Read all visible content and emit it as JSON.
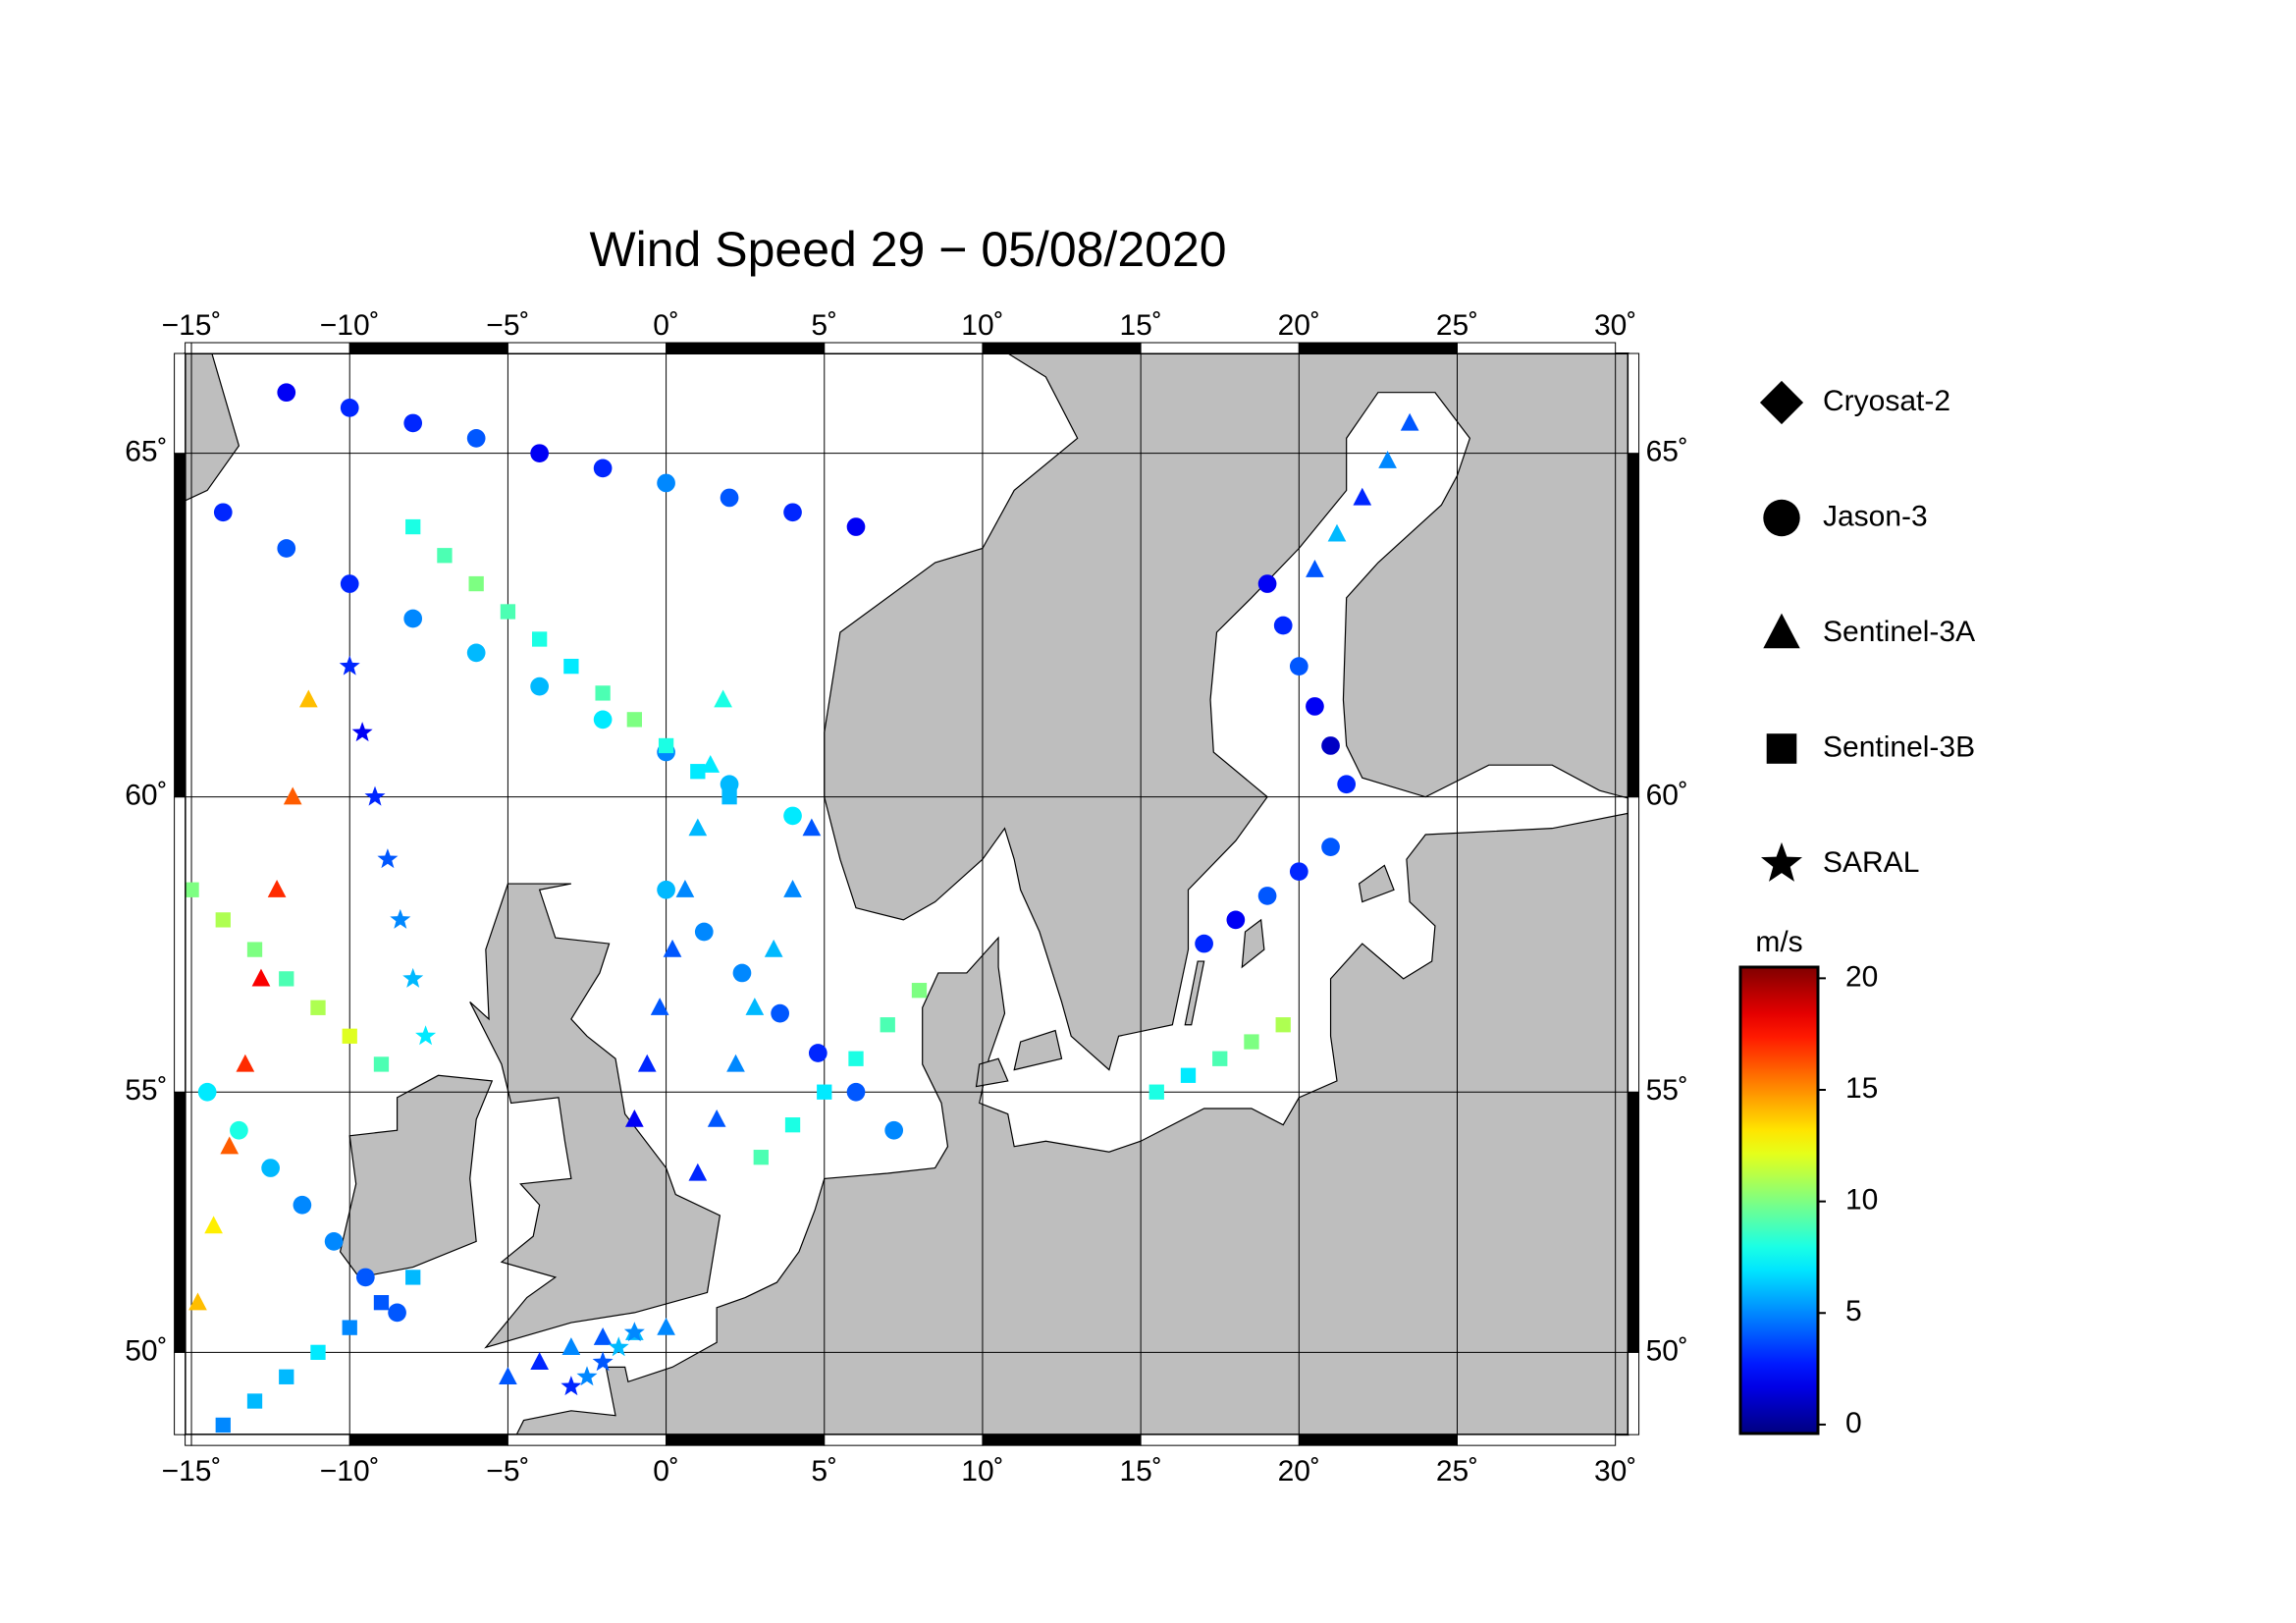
{
  "chart_data": {
    "type": "map",
    "title": "Wind Speed 29 − 05/08/2020",
    "xlim": [
      -15.2,
      30.4
    ],
    "ylim": [
      48.3,
      66.3
    ],
    "xticks": [
      {
        "value": -15,
        "label": "−15˚"
      },
      {
        "value": -10,
        "label": "−10˚"
      },
      {
        "value": -5,
        "label": "−5˚"
      },
      {
        "value": 0,
        "label": "0˚"
      },
      {
        "value": 5,
        "label": "5˚"
      },
      {
        "value": 10,
        "label": "10˚"
      },
      {
        "value": 15,
        "label": "15˚"
      },
      {
        "value": 20,
        "label": "20˚"
      },
      {
        "value": 25,
        "label": "25˚"
      },
      {
        "value": 30,
        "label": "30˚"
      }
    ],
    "yticks": [
      {
        "value": 50,
        "label": "50˚"
      },
      {
        "value": 55,
        "label": "55˚"
      },
      {
        "value": 60,
        "label": "60˚"
      },
      {
        "value": 65,
        "label": "65˚"
      }
    ],
    "grid": true,
    "colorbar": {
      "label": "m/s",
      "colormap": "jet",
      "clim": [
        -0.4,
        20.5
      ],
      "ticks": [
        0,
        5,
        10,
        15,
        20
      ]
    },
    "satellites": [
      {
        "name": "Cryosat-2",
        "marker": "diamond",
        "tracks": []
      },
      {
        "name": "Jason-3",
        "marker": "circle",
        "tracks": [
          {
            "lon": [
              -14,
              -12,
              -10,
              -8,
              -6,
              -4,
              -2,
              0,
              2,
              4
            ],
            "lat": [
              64.2,
              63.7,
              63.2,
              62.7,
              62.2,
              61.7,
              61.2,
              60.7,
              60.2,
              59.7
            ],
            "values": [
              3,
              4,
              3,
              5,
              6,
              6,
              7,
              5,
              6,
              7
            ]
          },
          {
            "lon": [
              -12,
              -10,
              -8,
              -6,
              -4,
              -2,
              0,
              2,
              4,
              6
            ],
            "lat": [
              65.8,
              65.6,
              65.4,
              65.2,
              65.0,
              64.8,
              64.6,
              64.4,
              64.2,
              64.0
            ],
            "values": [
              2,
              3,
              3,
              4,
              2,
              3,
              5,
              4,
              3,
              2
            ]
          },
          {
            "lon": [
              0,
              1.2,
              2.4,
              3.6,
              4.8,
              6,
              7.2
            ],
            "lat": [
              58.5,
              57.8,
              57.1,
              56.4,
              55.7,
              55,
              54.3
            ],
            "values": [
              6,
              5,
              5,
              4,
              3,
              4,
              5
            ]
          },
          {
            "lon": [
              -14.5,
              -13.5,
              -12.5,
              -11.5,
              -10.5,
              -9.5,
              -8.5
            ],
            "lat": [
              55,
              54.3,
              53.6,
              52.9,
              52.2,
              51.5,
              50.8
            ],
            "values": [
              7,
              8,
              6,
              5,
              5,
              4,
              4
            ]
          },
          {
            "lon": [
              17,
              18,
              19,
              20,
              21
            ],
            "lat": [
              57.6,
              58,
              58.4,
              58.8,
              59.2
            ],
            "values": [
              3,
              2,
              4,
              3,
              4
            ]
          },
          {
            "lon": [
              19,
              19.5,
              20,
              20.5,
              21,
              21.5
            ],
            "lat": [
              63.2,
              62.6,
              62,
              61.4,
              60.8,
              60.2
            ],
            "values": [
              2,
              3,
              4,
              2,
              1,
              3
            ]
          }
        ]
      },
      {
        "name": "Sentinel-3A",
        "marker": "triangle",
        "tracks": [
          {
            "lon": [
              -14.8,
              -14.3,
              -13.8,
              -13.3,
              -12.8,
              -12.3,
              -11.8,
              -11.3
            ],
            "lat": [
              51,
              52.5,
              54,
              55.5,
              57,
              58.5,
              60,
              61.5
            ],
            "values": [
              14,
              13,
              16,
              17,
              18,
              17,
              16,
              14
            ]
          },
          {
            "lon": [
              1,
              1.6,
              2.2,
              2.8,
              3.4,
              4,
              4.6
            ],
            "lat": [
              53.5,
              54.5,
              55.5,
              56.5,
              57.5,
              58.5,
              59.5
            ],
            "values": [
              3,
              4,
              5,
              6,
              6,
              5,
              4
            ]
          },
          {
            "lon": [
              -1,
              -0.6,
              -0.2,
              0.2,
              0.6,
              1,
              1.4,
              1.8
            ],
            "lat": [
              54.5,
              55.5,
              56.5,
              57.5,
              58.5,
              59.5,
              60.5,
              61.5
            ],
            "values": [
              2,
              3,
              4,
              4,
              5,
              6,
              7,
              8
            ]
          },
          {
            "lon": [
              23.5,
              22.8,
              22,
              21.2,
              20.5
            ],
            "lat": [
              65.4,
              64.9,
              64.4,
              63.9,
              63.4
            ],
            "values": [
              4,
              5,
              3,
              6,
              4
            ]
          },
          {
            "lon": [
              -5,
              -4,
              -3,
              -2,
              -1,
              0
            ],
            "lat": [
              49.5,
              49.8,
              50.1,
              50.3,
              50.4,
              50.5
            ],
            "values": [
              4,
              3,
              5,
              4,
              6,
              5
            ]
          }
        ]
      },
      {
        "name": "Sentinel-3B",
        "marker": "square",
        "tracks": [
          {
            "lon": [
              -15,
              -14,
              -13,
              -12,
              -11,
              -10,
              -9
            ],
            "lat": [
              58.5,
              58,
              57.5,
              57,
              56.5,
              56,
              55.5
            ],
            "values": [
              10,
              11,
              10,
              9,
              11,
              12,
              9
            ]
          },
          {
            "lon": [
              -8,
              -7,
              -6,
              -5,
              -4,
              -3,
              -2,
              -1,
              0,
              1,
              2
            ],
            "lat": [
              64,
              63.6,
              63.2,
              62.8,
              62.4,
              62,
              61.6,
              61.2,
              60.8,
              60.4,
              60
            ],
            "values": [
              8,
              9,
              10,
              9,
              8,
              7,
              9,
              10,
              8,
              7,
              6
            ]
          },
          {
            "lon": [
              3,
              4,
              5,
              6,
              7,
              8
            ],
            "lat": [
              53.8,
              54.4,
              55,
              55.6,
              56.2,
              56.8
            ],
            "values": [
              9,
              8,
              7,
              8,
              9,
              10
            ]
          },
          {
            "lon": [
              15.5,
              16.5,
              17.5,
              18.5,
              19.5
            ],
            "lat": [
              55,
              55.3,
              55.6,
              55.9,
              56.2
            ],
            "values": [
              8,
              7,
              9,
              10,
              11
            ]
          },
          {
            "lon": [
              -14,
              -13,
              -12,
              -11,
              -10,
              -9,
              -8
            ],
            "lat": [
              48.5,
              49,
              49.5,
              50,
              50.5,
              51,
              51.5
            ],
            "values": [
              5,
              6,
              6,
              7,
              5,
              4,
              6
            ]
          }
        ]
      },
      {
        "name": "SARAL",
        "marker": "star",
        "tracks": [
          {
            "lon": [
              -10,
              -9.6,
              -9.2,
              -8.8,
              -8.4,
              -8,
              -7.6
            ],
            "lat": [
              62,
              61,
              60,
              59,
              58,
              57,
              56
            ],
            "values": [
              3,
              2,
              3,
              4,
              5,
              6,
              7
            ]
          },
          {
            "lon": [
              -3,
              -2.5,
              -2,
              -1.5,
              -1
            ],
            "lat": [
              49.3,
              49.5,
              49.8,
              50.1,
              50.4
            ],
            "values": [
              3,
              5,
              4,
              6,
              5
            ]
          }
        ]
      }
    ]
  }
}
